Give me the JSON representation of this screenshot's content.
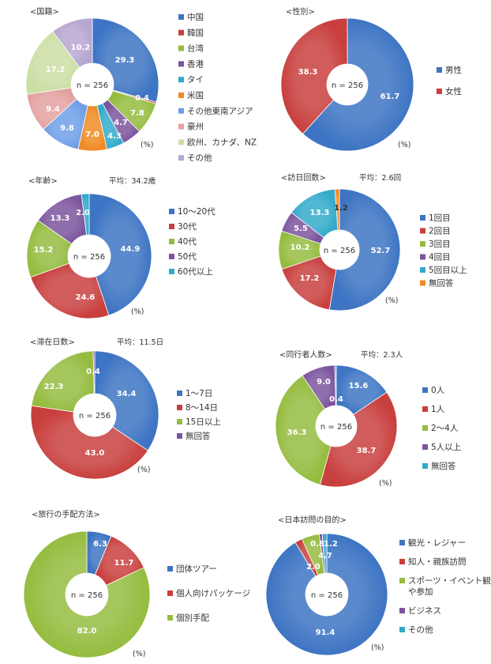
{
  "colors": {
    "blue": "#3D74C3",
    "red": "#C8403E",
    "green": "#95BC3F",
    "purple": "#7C559E",
    "cyan": "#33AACA",
    "orange": "#F08A24",
    "lightblue": "#6E9FE6",
    "pink": "#E3A1A0",
    "lightgreen": "#CBDFA4",
    "lavender": "#B7A6D1"
  },
  "center_text": "n = 256",
  "pct_text": "(%)",
  "chart_data": [
    {
      "type": "pie",
      "title": "<国籍>",
      "avg": "",
      "categories": [
        "中国",
        "韓国",
        "台湾",
        "香港",
        "タイ",
        "米国",
        "その他東南アジア",
        "豪州",
        "欧州、カナダ、NZ",
        "その他"
      ],
      "values": [
        29.3,
        0.4,
        7.8,
        4.7,
        4.3,
        7.0,
        9.8,
        9.4,
        17.2,
        10.2
      ],
      "labels": [
        "29.3",
        "0.4",
        "7.8",
        "4.7",
        "4.3",
        "7.0",
        "9.8",
        "9.4",
        "17.2",
        "10.2"
      ],
      "colors": [
        "blue",
        "red",
        "green",
        "purple",
        "cyan",
        "orange",
        "lightblue",
        "pink",
        "lightgreen",
        "lavender"
      ]
    },
    {
      "type": "pie",
      "title": "<性別>",
      "avg": "",
      "categories": [
        "男性",
        "女性"
      ],
      "values": [
        61.7,
        38.3
      ],
      "labels": [
        "61.7",
        "38.3"
      ],
      "colors": [
        "blue",
        "red"
      ]
    },
    {
      "type": "pie",
      "title": "<年齢>",
      "avg": "平均：34.2歳",
      "categories": [
        "10～20代",
        "30代",
        "40代",
        "50代",
        "60代以上"
      ],
      "values": [
        44.9,
        24.6,
        15.2,
        13.3,
        2.0
      ],
      "labels": [
        "44.9",
        "24.6",
        "15.2",
        "13.3",
        "2.0"
      ],
      "colors": [
        "blue",
        "red",
        "green",
        "purple",
        "cyan"
      ]
    },
    {
      "type": "pie",
      "title": "<訪日回数>",
      "avg": "平均：2.6回",
      "categories": [
        "1回目",
        "2回目",
        "3回目",
        "4回目",
        "5回目以上",
        "無回答"
      ],
      "values": [
        52.7,
        17.2,
        10.2,
        5.5,
        13.3,
        1.2
      ],
      "labels": [
        "52.7",
        "17.2",
        "10.2",
        "5.5",
        "13.3",
        "1.2"
      ],
      "colors": [
        "blue",
        "red",
        "green",
        "purple",
        "cyan",
        "orange"
      ]
    },
    {
      "type": "pie",
      "title": "<滞在日数>",
      "avg": "平均：11.5日",
      "categories": [
        "1～7日",
        "8～14日",
        "15日以上",
        "無回答"
      ],
      "values": [
        34.4,
        43.0,
        22.3,
        0.4
      ],
      "labels": [
        "34.4",
        "43.0",
        "22.3",
        "0.4"
      ],
      "colors": [
        "blue",
        "red",
        "green",
        "purple"
      ]
    },
    {
      "type": "pie",
      "title": "<同行者人数>",
      "avg": "平均：2.3人",
      "categories": [
        "0人",
        "1人",
        "2～4人",
        "5人以上",
        "無回答"
      ],
      "values": [
        15.6,
        38.7,
        36.3,
        9.0,
        0.4
      ],
      "labels": [
        "15.6",
        "38.7",
        "36.3",
        "9.0",
        "0.4"
      ],
      "colors": [
        "blue",
        "red",
        "green",
        "purple",
        "cyan"
      ]
    },
    {
      "type": "pie",
      "title": "<旅行の手配方法>",
      "avg": "",
      "categories": [
        "団体ツアー",
        "個人向けパッケージ",
        "個別手配"
      ],
      "values": [
        6.3,
        11.7,
        82.0
      ],
      "labels": [
        "6.3",
        "11.7",
        "82.0"
      ],
      "colors": [
        "blue",
        "red",
        "green"
      ]
    },
    {
      "type": "pie",
      "title": "<日本訪問の目的>",
      "avg": "",
      "categories": [
        "観光・レジャー",
        "知人・親族訪問",
        "スポーツ・イベント観戦\nや参加",
        "ビジネス",
        "その他"
      ],
      "values": [
        91.4,
        2.0,
        4.7,
        0.8,
        1.2
      ],
      "labels": [
        "91.4",
        "2.0",
        "4.7",
        "0.8",
        "1.2"
      ],
      "colors": [
        "blue",
        "red",
        "green",
        "purple",
        "cyan"
      ]
    }
  ]
}
